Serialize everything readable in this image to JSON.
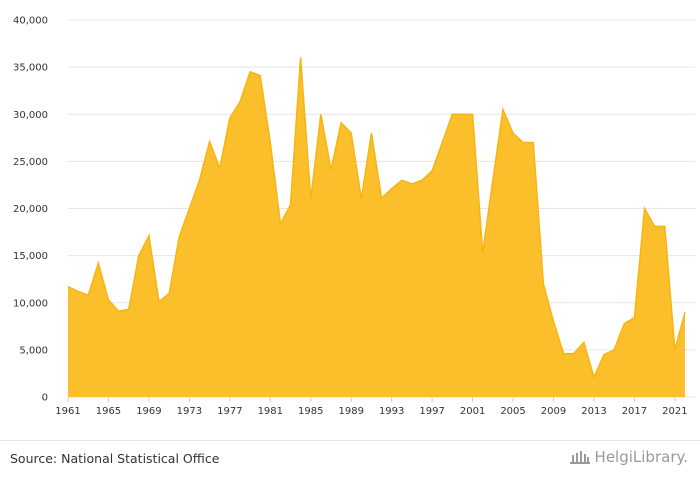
{
  "chart_data": {
    "type": "area",
    "x": [
      1961,
      1962,
      1963,
      1964,
      1965,
      1966,
      1967,
      1968,
      1969,
      1970,
      1971,
      1972,
      1973,
      1974,
      1975,
      1976,
      1977,
      1978,
      1979,
      1980,
      1981,
      1982,
      1983,
      1984,
      1985,
      1986,
      1987,
      1988,
      1989,
      1990,
      1991,
      1992,
      1993,
      1994,
      1995,
      1996,
      1997,
      1998,
      1999,
      2000,
      2001,
      2002,
      2003,
      2004,
      2005,
      2006,
      2007,
      2008,
      2009,
      2010,
      2011,
      2012,
      2013,
      2014,
      2015,
      2016,
      2017,
      2018,
      2019,
      2020,
      2021,
      2022
    ],
    "values": [
      11700,
      11200,
      10800,
      14200,
      10300,
      9100,
      9300,
      15000,
      17100,
      10100,
      11000,
      17000,
      20000,
      23000,
      27100,
      24300,
      29600,
      31300,
      34500,
      34100,
      27000,
      18400,
      20400,
      36000,
      21000,
      30000,
      24100,
      29100,
      28000,
      21000,
      28000,
      21100,
      22100,
      23000,
      22600,
      23000,
      24000,
      27000,
      30000,
      30000,
      30000,
      15300,
      23000,
      30500,
      28000,
      27000,
      27000,
      12000,
      8000,
      4600,
      4600,
      5800,
      2100,
      4500,
      5000,
      7800,
      8400,
      20000,
      18100,
      18100,
      5000,
      9000
    ],
    "ylim": [
      0,
      40000
    ],
    "yticks": [
      "0",
      "5,000",
      "10,000",
      "15,000",
      "20,000",
      "25,000",
      "30,000",
      "35,000",
      "40,000"
    ],
    "xticks": [
      "1961",
      "1965",
      "1969",
      "1973",
      "1977",
      "1981",
      "1985",
      "1989",
      "1993",
      "1997",
      "2001",
      "2005",
      "2009",
      "2013",
      "2017",
      "2021"
    ],
    "xtick_years": [
      1961,
      1965,
      1969,
      1973,
      1977,
      1981,
      1985,
      1989,
      1993,
      1997,
      2001,
      2005,
      2009,
      2013,
      2017,
      2021
    ],
    "grid": true,
    "fill_color": "#fbbf2c",
    "line_color": "#f6b511"
  },
  "footer": {
    "source": "Source: National Statistical Office",
    "logo_text": "HelgiLibrary."
  }
}
